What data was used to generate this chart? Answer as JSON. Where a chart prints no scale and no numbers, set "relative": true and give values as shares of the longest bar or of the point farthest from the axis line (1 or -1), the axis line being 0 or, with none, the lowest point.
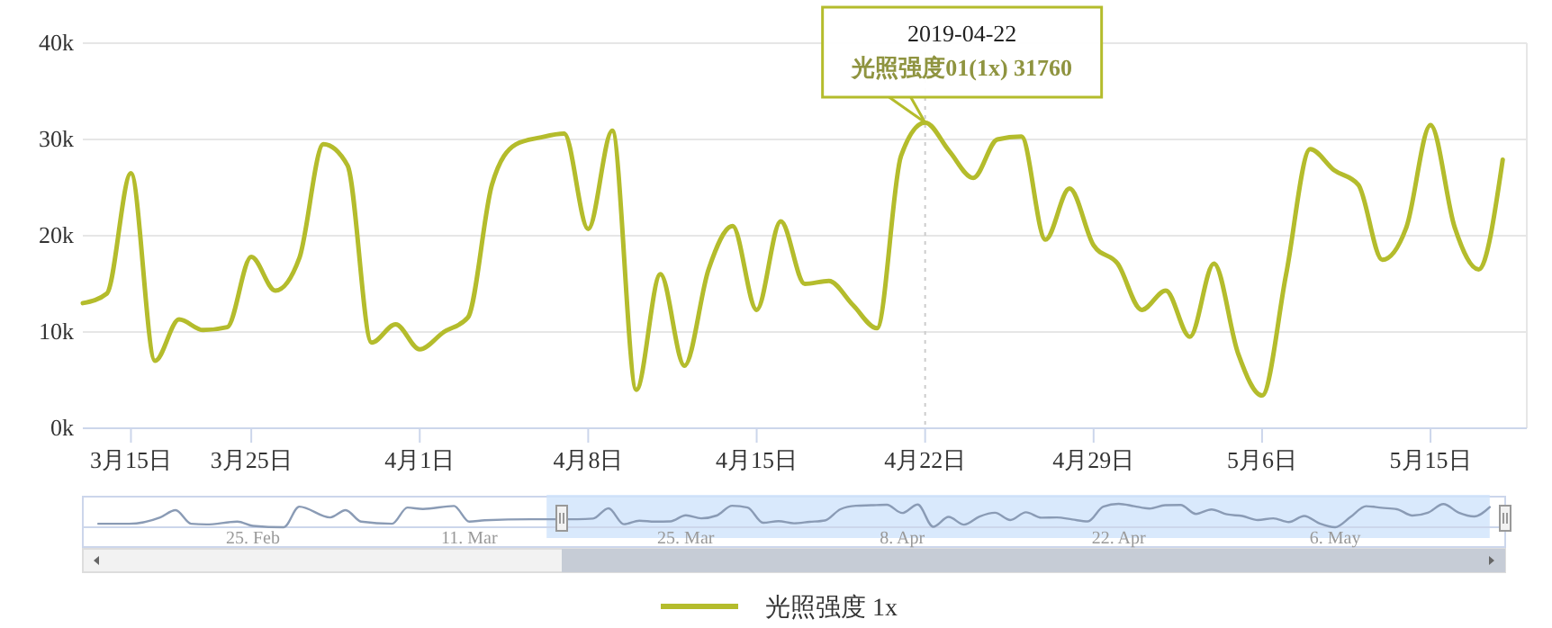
{
  "chart_data": [
    {
      "type": "line",
      "x": [
        "2019-03-18",
        "2019-03-19",
        "2019-03-20",
        "2019-03-21",
        "2019-03-22",
        "2019-03-23",
        "2019-03-24",
        "2019-03-25",
        "2019-03-26",
        "2019-03-27",
        "2019-03-28",
        "2019-03-29",
        "2019-03-30",
        "2019-03-31",
        "2019-04-01",
        "2019-04-02",
        "2019-04-03",
        "2019-04-04",
        "2019-04-05",
        "2019-04-06",
        "2019-04-07",
        "2019-04-08",
        "2019-04-09",
        "2019-04-10",
        "2019-04-11",
        "2019-04-12",
        "2019-04-13",
        "2019-04-14",
        "2019-04-15",
        "2019-04-16",
        "2019-04-17",
        "2019-04-18",
        "2019-04-19",
        "2019-04-20",
        "2019-04-21",
        "2019-04-22",
        "2019-04-23",
        "2019-04-24",
        "2019-04-25",
        "2019-04-26",
        "2019-04-27",
        "2019-04-28",
        "2019-04-29",
        "2019-04-30",
        "2019-05-01",
        "2019-05-02",
        "2019-05-03",
        "2019-05-04",
        "2019-05-05",
        "2019-05-06",
        "2019-05-07",
        "2019-05-08",
        "2019-05-09",
        "2019-05-10",
        "2019-05-11",
        "2019-05-12",
        "2019-05-13",
        "2019-05-14",
        "2019-05-15",
        "2019-05-16"
      ],
      "series": [
        {
          "name": "光照强度 1x",
          "color": "#b4bc2c",
          "values": [
            13000,
            14000,
            26500,
            7000,
            11300,
            10200,
            10500,
            17800,
            14300,
            17700,
            29500,
            27300,
            8900,
            10800,
            8200,
            10000,
            11500,
            25300,
            29500,
            30200,
            30600,
            20700,
            30900,
            4000,
            16000,
            6500,
            16500,
            21000,
            12300,
            21500,
            15000,
            15300,
            12800,
            10400,
            28300,
            31760,
            28800,
            26000,
            30000,
            30300,
            19600,
            24900,
            19000,
            17100,
            12300,
            14300,
            9500,
            17100,
            7800,
            3400,
            16000,
            29000,
            26800,
            25300,
            17500,
            20900,
            31500,
            20900,
            16500,
            27900
          ]
        }
      ],
      "xlim": [
        "2019-03-18",
        "2019-05-17"
      ],
      "xticks": [
        {
          "value": "2019-03-20",
          "label": "3月15日"
        },
        {
          "value": "2019-03-25",
          "label": "3月25日"
        },
        {
          "value": "2019-04-01",
          "label": "4月1日"
        },
        {
          "value": "2019-04-08",
          "label": "4月8日"
        },
        {
          "value": "2019-04-15",
          "label": "4月15日"
        },
        {
          "value": "2019-04-22",
          "label": "4月22日"
        },
        {
          "value": "2019-04-29",
          "label": "4月29日"
        },
        {
          "value": "2019-05-06",
          "label": "5月6日"
        },
        {
          "value": "2019-05-13",
          "label": "5月15日"
        }
      ],
      "ylim": [
        0,
        40000
      ],
      "yticks": [
        {
          "value": 0,
          "label": "0k"
        },
        {
          "value": 10000,
          "label": "10k"
        },
        {
          "value": 20000,
          "label": "20k"
        },
        {
          "value": 30000,
          "label": "30k"
        },
        {
          "value": 40000,
          "label": "40k"
        }
      ],
      "grid": "y",
      "legend": "bottom",
      "marker": "none",
      "line_style": "solid",
      "ref_lines": [
        {
          "axis": "x",
          "value": "2019-04-22",
          "color": "#cccccc",
          "line_style": "dotted"
        }
      ],
      "annotations": [
        {
          "text": "2019-04-22\n光照强度01(1x) 31760",
          "x": "2019-04-22",
          "y": 31760
        }
      ]
    },
    {
      "type": "line",
      "relative": true,
      "x": [
        "2019-02-15",
        "2019-02-17",
        "2019-02-19",
        "2019-02-20",
        "2019-02-21",
        "2019-02-22",
        "2019-02-24",
        "2019-02-25",
        "2019-02-27",
        "2019-02-28",
        "2019-03-02",
        "2019-03-03",
        "2019-03-04",
        "2019-03-06",
        "2019-03-07",
        "2019-03-08",
        "2019-03-10",
        "2019-03-11",
        "2019-03-12",
        "2019-03-15",
        "2019-03-18",
        "2019-03-19",
        "2019-03-20",
        "2019-03-21",
        "2019-03-22",
        "2019-03-23",
        "2019-03-24",
        "2019-03-25",
        "2019-03-26",
        "2019-03-27",
        "2019-03-28",
        "2019-03-29",
        "2019-03-30",
        "2019-03-31",
        "2019-04-01",
        "2019-04-02",
        "2019-04-03",
        "2019-04-04",
        "2019-04-05",
        "2019-04-06",
        "2019-04-07",
        "2019-04-08",
        "2019-04-09",
        "2019-04-10",
        "2019-04-11",
        "2019-04-12",
        "2019-04-13",
        "2019-04-14",
        "2019-04-15",
        "2019-04-16",
        "2019-04-17",
        "2019-04-18",
        "2019-04-19",
        "2019-04-20",
        "2019-04-21",
        "2019-04-22",
        "2019-04-23",
        "2019-04-24",
        "2019-04-25",
        "2019-04-26",
        "2019-04-27",
        "2019-04-28",
        "2019-04-29",
        "2019-04-30",
        "2019-05-01",
        "2019-05-02",
        "2019-05-03",
        "2019-05-04",
        "2019-05-05",
        "2019-05-06",
        "2019-05-07",
        "2019-05-08",
        "2019-05-09",
        "2019-05-10",
        "2019-05-11",
        "2019-05-12",
        "2019-05-13",
        "2019-05-14",
        "2019-05-15",
        "2019-05-16"
      ],
      "series": [
        {
          "color": "#8a9bb5",
          "values": [
            0.15,
            0.15,
            0.42,
            0.73,
            0.15,
            0.12,
            0.24,
            0.06,
            0,
            0.88,
            0.42,
            0.73,
            0.24,
            0.15,
            0.84,
            0.78,
            0.91,
            0.24,
            0.3,
            0.34,
            0.34,
            0.37,
            0.81,
            0.13,
            0.28,
            0.24,
            0.25,
            0.51,
            0.38,
            0.5,
            0.92,
            0.84,
            0.19,
            0.26,
            0.17,
            0.23,
            0.29,
            0.77,
            0.92,
            0.94,
            0.96,
            0.61,
            0.97,
            0.02,
            0.44,
            0.11,
            0.46,
            0.62,
            0.31,
            0.64,
            0.41,
            0.42,
            0.33,
            0.25,
            0.88,
            1,
            0.9,
            0.8,
            0.94,
            0.95,
            0.57,
            0.76,
            0.55,
            0.48,
            0.31,
            0.38,
            0.22,
            0.48,
            0.16,
            0,
            0.44,
            0.9,
            0.83,
            0.77,
            0.5,
            0.62,
            0.99,
            0.62,
            0.46,
            0.86
          ]
        }
      ],
      "xlim": [
        "2019-02-14",
        "2019-05-17"
      ],
      "xticks": [
        {
          "value": "2019-02-25",
          "label": "25. Feb"
        },
        {
          "value": "2019-03-11",
          "label": "11. Mar"
        },
        {
          "value": "2019-03-25",
          "label": "25. Mar"
        },
        {
          "value": "2019-04-08",
          "label": "8. Apr"
        },
        {
          "value": "2019-04-22",
          "label": "22. Apr"
        },
        {
          "value": "2019-05-06",
          "label": "6. May"
        }
      ],
      "tick_labels": "x",
      "marker": "none",
      "line_style": "solid",
      "bands": [
        {
          "axis": "x",
          "from": "2019-03-16",
          "to": "2019-05-16",
          "color": "#cfe3fb"
        }
      ]
    }
  ]
}
